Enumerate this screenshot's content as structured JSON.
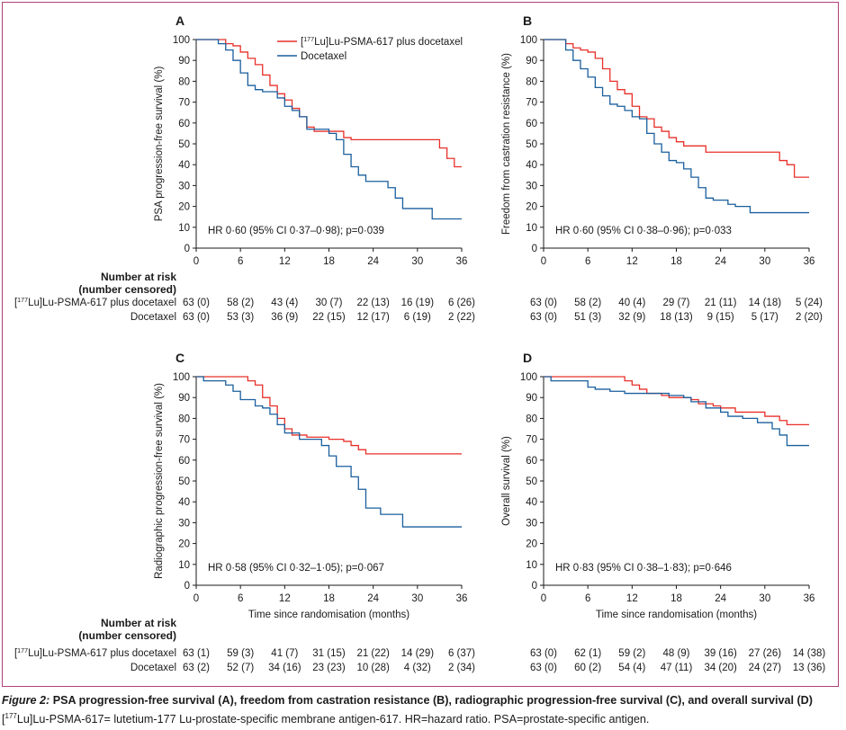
{
  "colors": {
    "lu": "#e8302a",
    "doc": "#1a5f9e",
    "axis": "#1a1a1a"
  },
  "legend": {
    "series_lu": {
      "sup": "177",
      "pre": "[",
      "post": "Lu]Lu-PSMA-617 plus docetaxel"
    },
    "series_doc": "Docetaxel"
  },
  "risk_table": {
    "title_line1": "Number at risk",
    "title_line2": "(number censored)",
    "row_lu": {
      "sup": "177",
      "pre": "[",
      "post": "Lu]Lu-PSMA-617 plus docetaxel"
    },
    "row_doc": "Docetaxel"
  },
  "chart_data": [
    {
      "panel": "A",
      "type": "line",
      "step": true,
      "ylabel": "PSA progression-free survival (%)",
      "xlabel": "",
      "xlim": [
        0,
        36
      ],
      "ylim": [
        0,
        100
      ],
      "xticks": [
        0,
        6,
        12,
        18,
        24,
        30,
        36
      ],
      "yticks": [
        0,
        10,
        20,
        30,
        40,
        50,
        60,
        70,
        80,
        90,
        100
      ],
      "annotation": "HR 0·60 (95% CI 0·37–0·98); p=0·039",
      "legend": true,
      "series": [
        {
          "name": "[177Lu]Lu-PSMA-617 plus docetaxel",
          "color_key": "lu",
          "points": [
            [
              0,
              100
            ],
            [
              3.5,
              100
            ],
            [
              4,
              98
            ],
            [
              5,
              97
            ],
            [
              6,
              94
            ],
            [
              7,
              91
            ],
            [
              8,
              88
            ],
            [
              9,
              83
            ],
            [
              10,
              78
            ],
            [
              11,
              74
            ],
            [
              12,
              71
            ],
            [
              13,
              67
            ],
            [
              14,
              63
            ],
            [
              15,
              58
            ],
            [
              16,
              56
            ],
            [
              20,
              53
            ],
            [
              21,
              52
            ],
            [
              32,
              52
            ],
            [
              33,
              48
            ],
            [
              34,
              43
            ],
            [
              35,
              39
            ],
            [
              36,
              39
            ]
          ]
        },
        {
          "name": "Docetaxel",
          "color_key": "doc",
          "points": [
            [
              0,
              100
            ],
            [
              3,
              98
            ],
            [
              4,
              95
            ],
            [
              5,
              90
            ],
            [
              6,
              84
            ],
            [
              7,
              78
            ],
            [
              8,
              76
            ],
            [
              9,
              75
            ],
            [
              10,
              75
            ],
            [
              11,
              72
            ],
            [
              12,
              68
            ],
            [
              13,
              66
            ],
            [
              14,
              63
            ],
            [
              15,
              57
            ],
            [
              17,
              57
            ],
            [
              18,
              55
            ],
            [
              19,
              52
            ],
            [
              20,
              45
            ],
            [
              21,
              39
            ],
            [
              22,
              35
            ],
            [
              23,
              32
            ],
            [
              26,
              29
            ],
            [
              27,
              24
            ],
            [
              28,
              19
            ],
            [
              31,
              19
            ],
            [
              32,
              14
            ],
            [
              36,
              14
            ]
          ]
        }
      ],
      "risk_values": {
        "times": [
          0,
          6,
          12,
          18,
          24,
          30,
          36
        ],
        "lu": [
          "63 (0)",
          "58 (2)",
          "43 (4)",
          "30 (7)",
          "22 (13)",
          "16 (19)",
          "6 (26)"
        ],
        "doc": [
          "63 (0)",
          "53 (3)",
          "36 (9)",
          "22 (15)",
          "12 (17)",
          "6 (19)",
          "2 (22)"
        ]
      }
    },
    {
      "panel": "B",
      "type": "line",
      "step": true,
      "ylabel": "Freedom from castration resistance (%)",
      "xlabel": "",
      "xlim": [
        0,
        36
      ],
      "ylim": [
        0,
        100
      ],
      "xticks": [
        0,
        6,
        12,
        18,
        24,
        30,
        36
      ],
      "yticks": [
        0,
        10,
        20,
        30,
        40,
        50,
        60,
        70,
        80,
        90,
        100
      ],
      "annotation": "HR 0·60 (95% CI 0·38–0·96); p=0·033",
      "legend": false,
      "series": [
        {
          "name": "[177Lu]Lu-PSMA-617 plus docetaxel",
          "color_key": "lu",
          "points": [
            [
              0,
              100
            ],
            [
              3,
              98
            ],
            [
              4,
              96
            ],
            [
              5,
              95
            ],
            [
              6,
              94
            ],
            [
              7,
              91
            ],
            [
              8,
              86
            ],
            [
              9,
              80
            ],
            [
              10,
              76
            ],
            [
              11,
              74
            ],
            [
              12,
              68
            ],
            [
              13,
              63
            ],
            [
              14,
              62
            ],
            [
              15,
              58
            ],
            [
              16,
              56
            ],
            [
              17,
              53
            ],
            [
              18,
              51
            ],
            [
              19,
              49
            ],
            [
              22,
              46
            ],
            [
              31,
              46
            ],
            [
              32,
              42
            ],
            [
              33,
              40
            ],
            [
              34,
              34
            ],
            [
              36,
              34
            ]
          ]
        },
        {
          "name": "Docetaxel",
          "color_key": "doc",
          "points": [
            [
              0,
              100
            ],
            [
              3,
              95
            ],
            [
              4,
              90
            ],
            [
              5,
              86
            ],
            [
              6,
              82
            ],
            [
              7,
              77
            ],
            [
              8,
              73
            ],
            [
              9,
              69
            ],
            [
              10,
              68
            ],
            [
              11,
              66
            ],
            [
              12,
              63
            ],
            [
              13,
              62
            ],
            [
              14,
              55
            ],
            [
              15,
              50
            ],
            [
              16,
              46
            ],
            [
              17,
              42
            ],
            [
              18,
              41
            ],
            [
              19,
              38
            ],
            [
              20,
              34
            ],
            [
              21,
              29
            ],
            [
              22,
              24
            ],
            [
              23,
              23
            ],
            [
              25,
              21
            ],
            [
              26,
              20
            ],
            [
              28,
              17
            ],
            [
              36,
              17
            ]
          ]
        }
      ],
      "risk_values": {
        "times": [
          0,
          6,
          12,
          18,
          24,
          30,
          36
        ],
        "lu": [
          "63 (0)",
          "58 (2)",
          "40 (4)",
          "29 (7)",
          "21 (11)",
          "14 (18)",
          "5 (24)"
        ],
        "doc": [
          "63 (0)",
          "51 (3)",
          "32 (9)",
          "18 (13)",
          "9 (15)",
          "5 (17)",
          "2 (20)"
        ]
      }
    },
    {
      "panel": "C",
      "type": "line",
      "step": true,
      "ylabel": "Radiographic progression-free survival (%)",
      "xlabel": "Time since randomisation (months)",
      "xlim": [
        0,
        36
      ],
      "ylim": [
        0,
        100
      ],
      "xticks": [
        0,
        6,
        12,
        18,
        24,
        30,
        36
      ],
      "yticks": [
        0,
        10,
        20,
        30,
        40,
        50,
        60,
        70,
        80,
        90,
        100
      ],
      "annotation": "HR 0·58 (95% CI 0·32–1·05); p=0·067",
      "legend": false,
      "series": [
        {
          "name": "[177Lu]Lu-PSMA-617 plus docetaxel",
          "color_key": "lu",
          "points": [
            [
              0,
              100
            ],
            [
              7,
              98
            ],
            [
              8,
              96
            ],
            [
              9,
              90
            ],
            [
              10,
              86
            ],
            [
              11,
              80
            ],
            [
              12,
              75
            ],
            [
              13,
              72
            ],
            [
              15,
              71
            ],
            [
              18,
              70
            ],
            [
              20,
              69
            ],
            [
              21,
              67
            ],
            [
              22,
              65
            ],
            [
              23,
              63
            ],
            [
              36,
              63
            ]
          ]
        },
        {
          "name": "Docetaxel",
          "color_key": "doc",
          "points": [
            [
              0,
              100
            ],
            [
              1,
              98
            ],
            [
              4,
              96
            ],
            [
              5,
              93
            ],
            [
              6,
              89
            ],
            [
              8,
              86
            ],
            [
              9,
              85
            ],
            [
              10,
              82
            ],
            [
              11,
              77
            ],
            [
              12,
              73
            ],
            [
              14,
              70
            ],
            [
              17,
              67
            ],
            [
              18,
              62
            ],
            [
              19,
              57
            ],
            [
              21,
              52
            ],
            [
              22,
              46
            ],
            [
              23,
              37
            ],
            [
              25,
              34
            ],
            [
              28,
              28
            ],
            [
              36,
              28
            ]
          ]
        }
      ],
      "risk_values": {
        "times": [
          0,
          6,
          12,
          18,
          24,
          30,
          36
        ],
        "lu": [
          "63 (1)",
          "59 (3)",
          "41 (7)",
          "31 (15)",
          "21 (22)",
          "14 (29)",
          "6 (37)"
        ],
        "doc": [
          "63 (2)",
          "52 (7)",
          "34 (16)",
          "23 (23)",
          "10 (28)",
          "4 (32)",
          "2 (34)"
        ]
      }
    },
    {
      "panel": "D",
      "type": "line",
      "step": true,
      "ylabel": "Overall survival (%)",
      "xlabel": "Time since randomisation (months)",
      "xlim": [
        0,
        36
      ],
      "ylim": [
        0,
        100
      ],
      "xticks": [
        0,
        6,
        12,
        18,
        24,
        30,
        36
      ],
      "yticks": [
        0,
        10,
        20,
        30,
        40,
        50,
        60,
        70,
        80,
        90,
        100
      ],
      "annotation": "HR 0·83 (95% CI 0·38–1·83); p=0·646",
      "legend": false,
      "series": [
        {
          "name": "[177Lu]Lu-PSMA-617 plus docetaxel",
          "color_key": "lu",
          "points": [
            [
              0,
              100
            ],
            [
              10,
              100
            ],
            [
              11,
              98
            ],
            [
              12,
              96
            ],
            [
              13,
              94
            ],
            [
              14,
              92
            ],
            [
              16,
              91
            ],
            [
              17,
              90
            ],
            [
              20,
              89
            ],
            [
              21,
              87
            ],
            [
              23,
              86
            ],
            [
              24,
              85
            ],
            [
              26,
              83
            ],
            [
              29,
              83
            ],
            [
              30,
              81
            ],
            [
              32,
              79
            ],
            [
              33,
              77
            ],
            [
              36,
              77
            ]
          ]
        },
        {
          "name": "Docetaxel",
          "color_key": "doc",
          "points": [
            [
              0,
              100
            ],
            [
              1,
              98
            ],
            [
              6,
              95
            ],
            [
              7,
              94
            ],
            [
              9,
              93
            ],
            [
              11,
              92
            ],
            [
              17,
              91
            ],
            [
              19,
              90
            ],
            [
              20,
              88
            ],
            [
              22,
              85
            ],
            [
              24,
              83
            ],
            [
              25,
              81
            ],
            [
              27,
              80
            ],
            [
              29,
              78
            ],
            [
              31,
              75
            ],
            [
              32,
              72
            ],
            [
              33,
              67
            ],
            [
              36,
              67
            ]
          ]
        }
      ],
      "risk_values": {
        "times": [
          0,
          6,
          12,
          18,
          24,
          30,
          36
        ],
        "lu": [
          "63 (0)",
          "62 (1)",
          "59 (2)",
          "48 (9)",
          "39 (16)",
          "27 (26)",
          "14 (38)"
        ],
        "doc": [
          "63 (0)",
          "60 (2)",
          "54 (4)",
          "47 (11)",
          "34 (20)",
          "24 (27)",
          "13 (36)"
        ]
      }
    }
  ],
  "caption": {
    "fig_label": "Figure 2:",
    "title": "PSA progression-free survival (A), freedom from castration resistance (B), radiographic progression-free survival (C), and overall survival (D)",
    "footnote": {
      "sup": "177",
      "pre": "[",
      "post": "Lu]Lu-PSMA-617= lutetium-177 Lu-prostate-specific membrane antigen-617. HR=hazard ratio. PSA=prostate-specific antigen."
    }
  }
}
